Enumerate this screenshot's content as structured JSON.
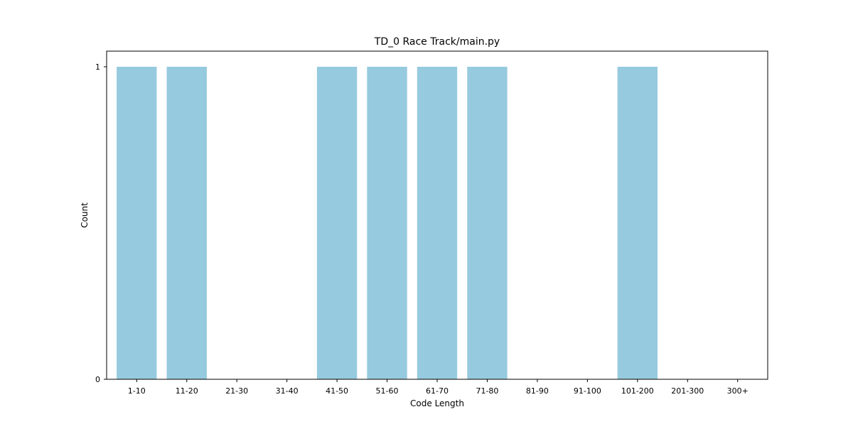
{
  "chart_data": {
    "type": "bar",
    "title": "TD_0 Race Track/main.py",
    "xlabel": "Code Length",
    "ylabel": "Count",
    "categories": [
      "1-10",
      "11-20",
      "21-30",
      "31-40",
      "41-50",
      "51-60",
      "61-70",
      "71-80",
      "81-90",
      "91-100",
      "101-200",
      "201-300",
      "300+"
    ],
    "values": [
      1,
      1,
      0,
      0,
      1,
      1,
      1,
      1,
      0,
      0,
      1,
      0,
      0
    ],
    "ylim": [
      0,
      1.05
    ],
    "yticks": [
      0,
      1
    ],
    "bar_color": "#96cade",
    "grid": false,
    "legend": false
  }
}
